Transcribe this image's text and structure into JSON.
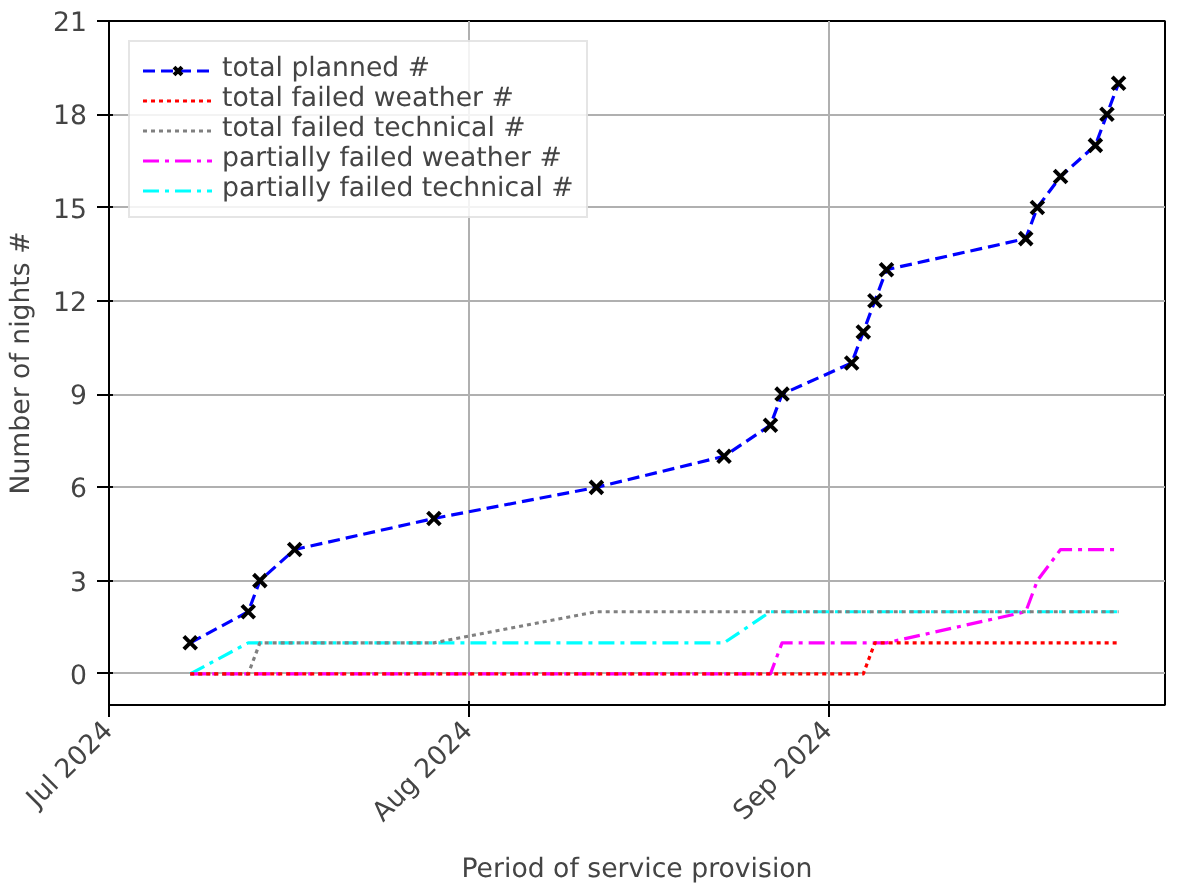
{
  "chart_data": {
    "type": "line",
    "xlabel": "Period of service provision",
    "ylabel": "Number of nights #",
    "x": [
      "2024-07-08",
      "2024-07-13",
      "2024-07-14",
      "2024-07-17",
      "2024-07-29",
      "2024-08-12",
      "2024-08-23",
      "2024-08-27",
      "2024-08-28",
      "2024-09-03",
      "2024-09-04",
      "2024-09-05",
      "2024-09-06",
      "2024-09-18",
      "2024-09-19",
      "2024-09-21",
      "2024-09-24",
      "2024-09-25",
      "2024-09-26"
    ],
    "series": [
      {
        "name": "total planned #",
        "color": "#0000ff",
        "line_style": "dashed",
        "marker": "cross",
        "values": [
          1,
          2,
          3,
          4,
          5,
          6,
          7,
          8,
          9,
          10,
          11,
          12,
          13,
          14,
          15,
          16,
          17,
          18,
          19
        ]
      },
      {
        "name": "total failed weather #",
        "color": "#ff0000",
        "line_style": "dotted",
        "values": [
          0,
          0,
          0,
          0,
          0,
          0,
          0,
          0,
          0,
          0,
          0,
          1,
          1,
          1,
          1,
          1,
          1,
          1,
          1
        ]
      },
      {
        "name": "total failed technical #",
        "color": "#808080",
        "line_style": "dotted",
        "values": [
          0,
          0,
          1,
          1,
          1,
          2,
          2,
          2,
          2,
          2,
          2,
          2,
          2,
          2,
          2,
          2,
          2,
          2,
          2
        ]
      },
      {
        "name": "partially failed weather #",
        "color": "#ff00ff",
        "line_style": "dashdot",
        "values": [
          0,
          0,
          0,
          0,
          0,
          0,
          0,
          0,
          1,
          1,
          1,
          1,
          1,
          2,
          3,
          4,
          4,
          4,
          4
        ]
      },
      {
        "name": "partially failed technical #",
        "color": "#00ffff",
        "line_style": "dashdot",
        "values": [
          0,
          1,
          1,
          1,
          1,
          1,
          1,
          2,
          2,
          2,
          2,
          2,
          2,
          2,
          2,
          2,
          2,
          2,
          2
        ]
      }
    ],
    "xlim": [
      "2024-07-01",
      "2024-09-30"
    ],
    "xticks": [
      {
        "value": "2024-07-01",
        "label": "Jul 2024"
      },
      {
        "value": "2024-08-01",
        "label": "Aug 2024"
      },
      {
        "value": "2024-09-01",
        "label": "Sep 2024"
      }
    ],
    "ylim": [
      -1,
      21
    ],
    "yticks": [
      0,
      3,
      6,
      9,
      12,
      15,
      18,
      21
    ],
    "grid": true,
    "legend": "top left"
  }
}
